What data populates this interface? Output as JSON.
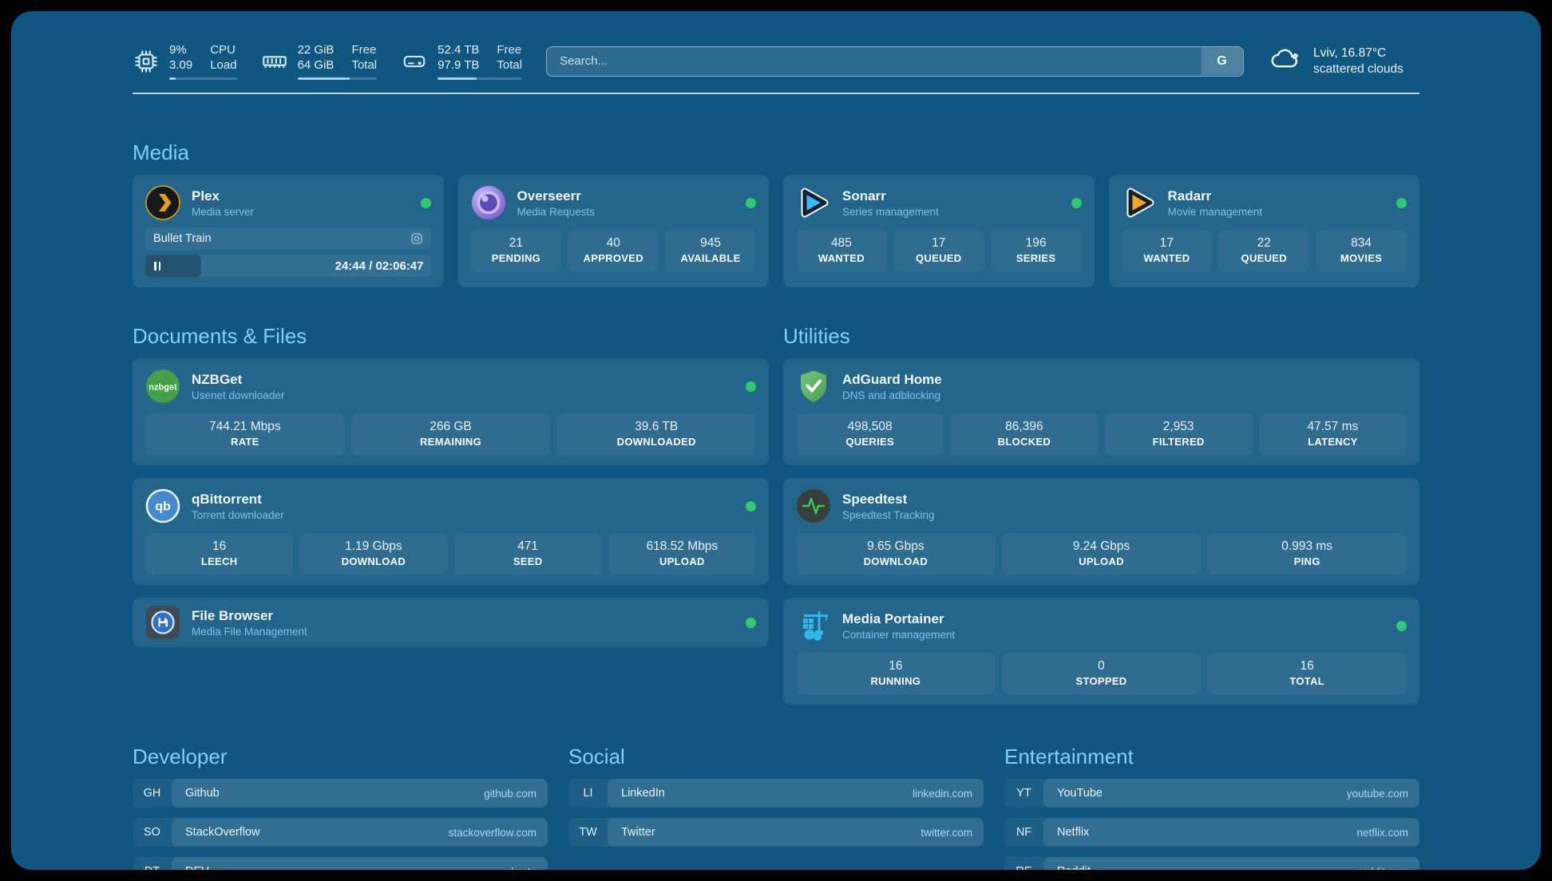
{
  "colors": {
    "panel_bg": "#0f5680",
    "accent_title": "#7ed2f7",
    "status_online": "#2ecc71",
    "subtitle": "#83c2e6",
    "url_text": "#a5dbf5"
  },
  "header": {
    "system_stats": [
      {
        "icon": "cpu-icon",
        "values": [
          "9%",
          "3.09"
        ],
        "labels": [
          "CPU",
          "Load"
        ],
        "progress_pct": 9
      },
      {
        "icon": "ram-icon",
        "values": [
          "22 GiB",
          "64 GiB"
        ],
        "labels": [
          "Free",
          "Total"
        ],
        "progress_pct": 66
      },
      {
        "icon": "disk-icon",
        "values": [
          "52.4 TB",
          "97.9 TB"
        ],
        "labels": [
          "Free",
          "Total"
        ],
        "progress_pct": 46
      }
    ],
    "search": {
      "placeholder": "Search...",
      "button_label": "G"
    },
    "weather": {
      "icon": "cloud-icon",
      "location": "Lviv, 16.87°C",
      "condition": "scattered clouds"
    }
  },
  "sections": {
    "media": {
      "title": "Media",
      "plex": {
        "name": "Plex",
        "subtitle": "Media server",
        "online": true,
        "now_playing": "Bullet Train",
        "time": "24:44 / 02:06:47",
        "progress_pct": 19.5
      },
      "overseerr": {
        "name": "Overseerr",
        "subtitle": "Media Requests",
        "online": true,
        "stats": [
          {
            "value": "21",
            "label": "PENDING"
          },
          {
            "value": "40",
            "label": "APPROVED"
          },
          {
            "value": "945",
            "label": "AVAILABLE"
          }
        ]
      },
      "sonarr": {
        "name": "Sonarr",
        "subtitle": "Series management",
        "online": true,
        "stats": [
          {
            "value": "485",
            "label": "WANTED"
          },
          {
            "value": "17",
            "label": "QUEUED"
          },
          {
            "value": "196",
            "label": "SERIES"
          }
        ]
      },
      "radarr": {
        "name": "Radarr",
        "subtitle": "Movie management",
        "online": true,
        "stats": [
          {
            "value": "17",
            "label": "WANTED"
          },
          {
            "value": "22",
            "label": "QUEUED"
          },
          {
            "value": "834",
            "label": "MOVIES"
          }
        ]
      }
    },
    "documents": {
      "title": "Documents & Files",
      "nzbget": {
        "name": "NZBGet",
        "subtitle": "Usenet downloader",
        "online": true,
        "logo_text": "nzbget",
        "stats": [
          {
            "value": "744.21 Mbps",
            "label": "RATE"
          },
          {
            "value": "266 GB",
            "label": "REMAINING"
          },
          {
            "value": "39.6 TB",
            "label": "DOWNLOADED"
          }
        ]
      },
      "qbittorrent": {
        "name": "qBittorrent",
        "subtitle": "Torrent downloader",
        "online": true,
        "logo_text": "qb",
        "stats": [
          {
            "value": "16",
            "label": "LEECH"
          },
          {
            "value": "1.19 Gbps",
            "label": "DOWNLOAD"
          },
          {
            "value": "471",
            "label": "SEED"
          },
          {
            "value": "618.52 Mbps",
            "label": "UPLOAD"
          }
        ]
      },
      "filebrowser": {
        "name": "File Browser",
        "subtitle": "Media File Management",
        "online": true
      }
    },
    "utilities": {
      "title": "Utilities",
      "adguard": {
        "name": "AdGuard Home",
        "subtitle": "DNS and adblocking",
        "stats": [
          {
            "value": "498,508",
            "label": "QUERIES"
          },
          {
            "value": "86,396",
            "label": "BLOCKED"
          },
          {
            "value": "2,953",
            "label": "FILTERED"
          },
          {
            "value": "47.57 ms",
            "label": "LATENCY"
          }
        ]
      },
      "speedtest": {
        "name": "Speedtest",
        "subtitle": "Speedtest Tracking",
        "stats": [
          {
            "value": "9.65 Gbps",
            "label": "DOWNLOAD"
          },
          {
            "value": "9.24 Gbps",
            "label": "UPLOAD"
          },
          {
            "value": "0.993 ms",
            "label": "PING"
          }
        ]
      },
      "portainer": {
        "name": "Media Portainer",
        "subtitle": "Container management",
        "online": true,
        "stats": [
          {
            "value": "16",
            "label": "RUNNING"
          },
          {
            "value": "0",
            "label": "STOPPED"
          },
          {
            "value": "16",
            "label": "TOTAL"
          }
        ]
      }
    },
    "links": {
      "developer": {
        "title": "Developer",
        "items": [
          {
            "abbr": "GH",
            "name": "Github",
            "url": "github.com"
          },
          {
            "abbr": "SO",
            "name": "StackOverflow",
            "url": "stackoverflow.com"
          },
          {
            "abbr": "DT",
            "name": "DEV",
            "url": "dev.to"
          }
        ]
      },
      "social": {
        "title": "Social",
        "items": [
          {
            "abbr": "LI",
            "name": "LinkedIn",
            "url": "linkedin.com"
          },
          {
            "abbr": "TW",
            "name": "Twitter",
            "url": "twitter.com"
          }
        ]
      },
      "entertainment": {
        "title": "Entertainment",
        "items": [
          {
            "abbr": "YT",
            "name": "YouTube",
            "url": "youtube.com"
          },
          {
            "abbr": "NF",
            "name": "Netflix",
            "url": "netflix.com"
          },
          {
            "abbr": "RE",
            "name": "Reddit",
            "url": "reddit.com"
          }
        ]
      }
    }
  }
}
